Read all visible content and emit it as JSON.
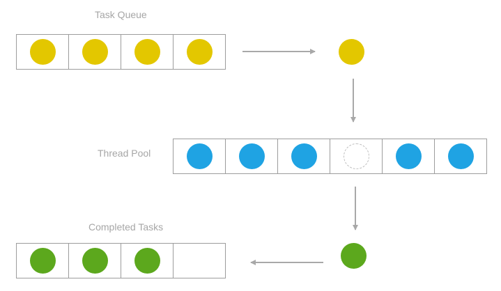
{
  "labels": {
    "task_queue": "Task Queue",
    "thread_pool": "Thread Pool",
    "completed_tasks": "Completed Tasks"
  },
  "task_queue": {
    "slots": [
      "task",
      "task",
      "task",
      "task"
    ]
  },
  "thread_pool": {
    "slots": [
      "busy",
      "busy",
      "busy",
      "idle",
      "busy",
      "busy"
    ]
  },
  "completed_tasks": {
    "slots": [
      "done",
      "done",
      "done",
      "empty"
    ]
  },
  "colors": {
    "task": "#e3c700",
    "thread": "#1fa3e3",
    "done": "#5ca81d",
    "arrow": "#a8a8a8",
    "label": "#a6a6a6",
    "border": "#9c9c9c"
  },
  "icons": {
    "task": "yellow-circle",
    "thread": "blue-circle",
    "idle": "dashed-circle",
    "done": "green-circle",
    "arrow": "arrow-head"
  }
}
